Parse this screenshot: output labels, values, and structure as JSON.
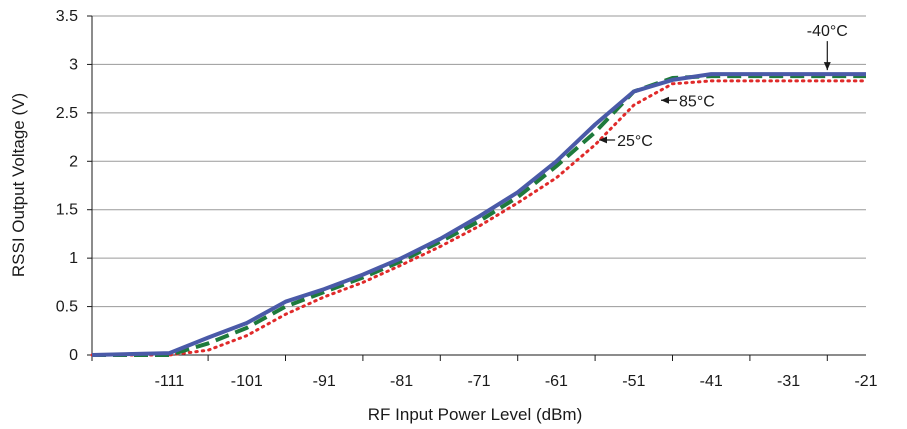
{
  "chart_data": {
    "type": "line",
    "xlabel": "RF Input Power Level (dBm)",
    "ylabel": "RSSI Output Voltage (V)",
    "xlim": [
      -121,
      -21
    ],
    "ylim": [
      0,
      3.5
    ],
    "xticks": [
      -111,
      -101,
      -91,
      -81,
      -71,
      -61,
      -51,
      -41,
      -31,
      -21
    ],
    "yticks": [
      0,
      0.5,
      1,
      1.5,
      2,
      2.5,
      3,
      3.5
    ],
    "ytick_labels": [
      "0",
      "0.5",
      "1",
      "1.5",
      "2",
      "2.5",
      "3",
      "3.5"
    ],
    "grid": "horizontal",
    "series": [
      {
        "name": "-40°C",
        "color": "#4a5aa8",
        "style": "solid",
        "x": [
          -121,
          -111,
          -106,
          -101,
          -96,
          -91,
          -86,
          -81,
          -76,
          -71,
          -66,
          -61,
          -56,
          -51,
          -46,
          -41,
          -36,
          -31,
          -26,
          -21
        ],
        "y": [
          0.0,
          0.02,
          0.18,
          0.33,
          0.55,
          0.68,
          0.83,
          1.0,
          1.2,
          1.43,
          1.68,
          2.0,
          2.38,
          2.72,
          2.84,
          2.9,
          2.9,
          2.9,
          2.9,
          2.9
        ]
      },
      {
        "name": "25°C",
        "color": "#1e7a3c",
        "style": "dashed",
        "x": [
          -121,
          -111,
          -106,
          -101,
          -96,
          -91,
          -86,
          -81,
          -76,
          -71,
          -66,
          -61,
          -56,
          -51,
          -46,
          -41,
          -36,
          -31,
          -26,
          -21
        ],
        "y": [
          0.0,
          0.0,
          0.12,
          0.28,
          0.5,
          0.65,
          0.8,
          0.97,
          1.17,
          1.38,
          1.63,
          1.95,
          2.3,
          2.72,
          2.86,
          2.88,
          2.88,
          2.88,
          2.88,
          2.88
        ]
      },
      {
        "name": "85°C",
        "color": "#e02a2a",
        "style": "dotted",
        "x": [
          -121,
          -111,
          -106,
          -101,
          -96,
          -91,
          -86,
          -81,
          -76,
          -71,
          -66,
          -61,
          -56,
          -51,
          -46,
          -41,
          -36,
          -31,
          -26,
          -21
        ],
        "y": [
          0.0,
          0.0,
          0.05,
          0.2,
          0.42,
          0.6,
          0.75,
          0.93,
          1.12,
          1.33,
          1.57,
          1.83,
          2.17,
          2.58,
          2.8,
          2.83,
          2.83,
          2.83,
          2.83,
          2.83
        ]
      }
    ],
    "annotations": [
      {
        "text": "-40°C",
        "series": "-40°C",
        "x": -26,
        "y": 2.9
      },
      {
        "text": "85°C",
        "series": "85°C",
        "x": -48,
        "y": 2.63
      },
      {
        "text": "25°C",
        "series": "25°C",
        "x": -56,
        "y": 2.22
      }
    ]
  }
}
